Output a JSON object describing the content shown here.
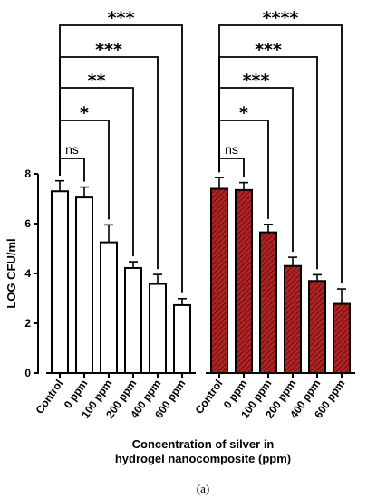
{
  "chart_data": {
    "type": "bar",
    "ylabel": "LOG CFU/ml",
    "xlabel_lines": [
      "Concentration of silver in",
      "hydrogel nanocomposite (ppm)"
    ],
    "panel_label": "(a)",
    "ylim": [
      0,
      8
    ],
    "yticks": [
      "0",
      "2",
      "4",
      "6",
      "8"
    ],
    "groups": [
      {
        "categories": [
          "Control",
          "0 ppm",
          "100 ppm",
          "200 ppm",
          "400 ppm",
          "600 ppm"
        ],
        "values": [
          7.3,
          7.05,
          5.25,
          4.22,
          3.58,
          2.73
        ],
        "errors": [
          0.42,
          0.42,
          0.7,
          0.25,
          0.38,
          0.26
        ],
        "fill": "#ffffff",
        "significance": [
          {
            "to": "0 ppm",
            "label": "ns"
          },
          {
            "to": "100 ppm",
            "label": "*"
          },
          {
            "to": "200 ppm",
            "label": "**"
          },
          {
            "to": "400 ppm",
            "label": "***"
          },
          {
            "to": "600 ppm",
            "label": "***"
          }
        ]
      },
      {
        "categories": [
          "Control",
          "0 ppm",
          "100 ppm",
          "200 ppm",
          "400 ppm",
          "600 ppm"
        ],
        "values": [
          7.4,
          7.35,
          5.65,
          4.3,
          3.7,
          2.78
        ],
        "errors": [
          0.45,
          0.3,
          0.32,
          0.35,
          0.25,
          0.6
        ],
        "fill": "#b22222",
        "significance": [
          {
            "to": "0 ppm",
            "label": "ns"
          },
          {
            "to": "100 ppm",
            "label": "*"
          },
          {
            "to": "200 ppm",
            "label": "***"
          },
          {
            "to": "400 ppm",
            "label": "***"
          },
          {
            "to": "600 ppm",
            "label": "****"
          }
        ]
      }
    ]
  }
}
